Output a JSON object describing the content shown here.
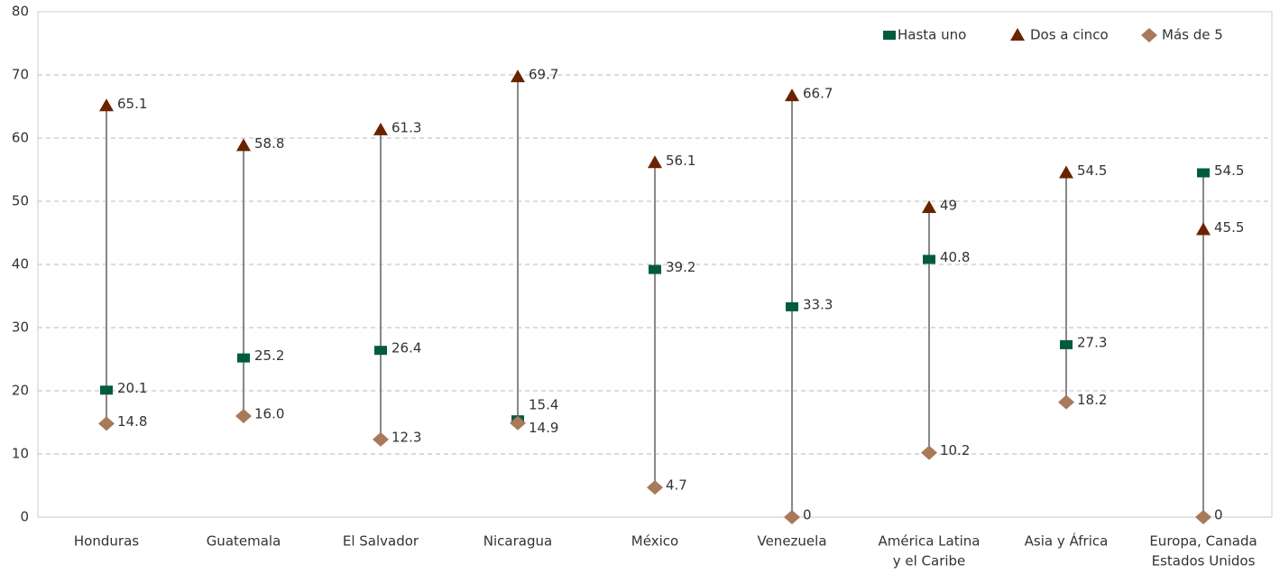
{
  "chart_data": {
    "type": "dot-range",
    "categories": [
      "Honduras",
      "Guatemala",
      "El Salvador",
      "Nicaragua",
      "México",
      "Venezuela",
      [
        "América Latina",
        "y el Caribe"
      ],
      "Asia y África",
      [
        "Europa, Canada",
        "Estados Unidos"
      ]
    ],
    "series": [
      {
        "name": "Hasta uno",
        "color": "#005c3c",
        "marker": "square",
        "values": [
          20.1,
          25.2,
          26.4,
          15.4,
          39.2,
          33.3,
          40.8,
          27.3,
          54.5
        ]
      },
      {
        "name": "Dos a cinco",
        "color": "#6b2200",
        "marker": "triangle",
        "values": [
          65.1,
          58.8,
          61.3,
          69.7,
          56.1,
          66.7,
          49,
          54.5,
          45.5
        ]
      },
      {
        "name": "Más de 5",
        "color": "#a8795a",
        "marker": "diamond",
        "values": [
          14.8,
          16.0,
          12.3,
          14.9,
          4.7,
          0,
          10.2,
          18.2,
          0
        ],
        "value_labels": [
          "14.8",
          "16.0",
          "12.3",
          "14.9",
          "4.7",
          "0",
          "10.2",
          "18.2",
          "0"
        ]
      }
    ],
    "ylim": [
      0,
      80
    ],
    "yticks": [
      0,
      10,
      20,
      30,
      40,
      50,
      60,
      70,
      80
    ],
    "grid": true,
    "legend": "top-right"
  }
}
